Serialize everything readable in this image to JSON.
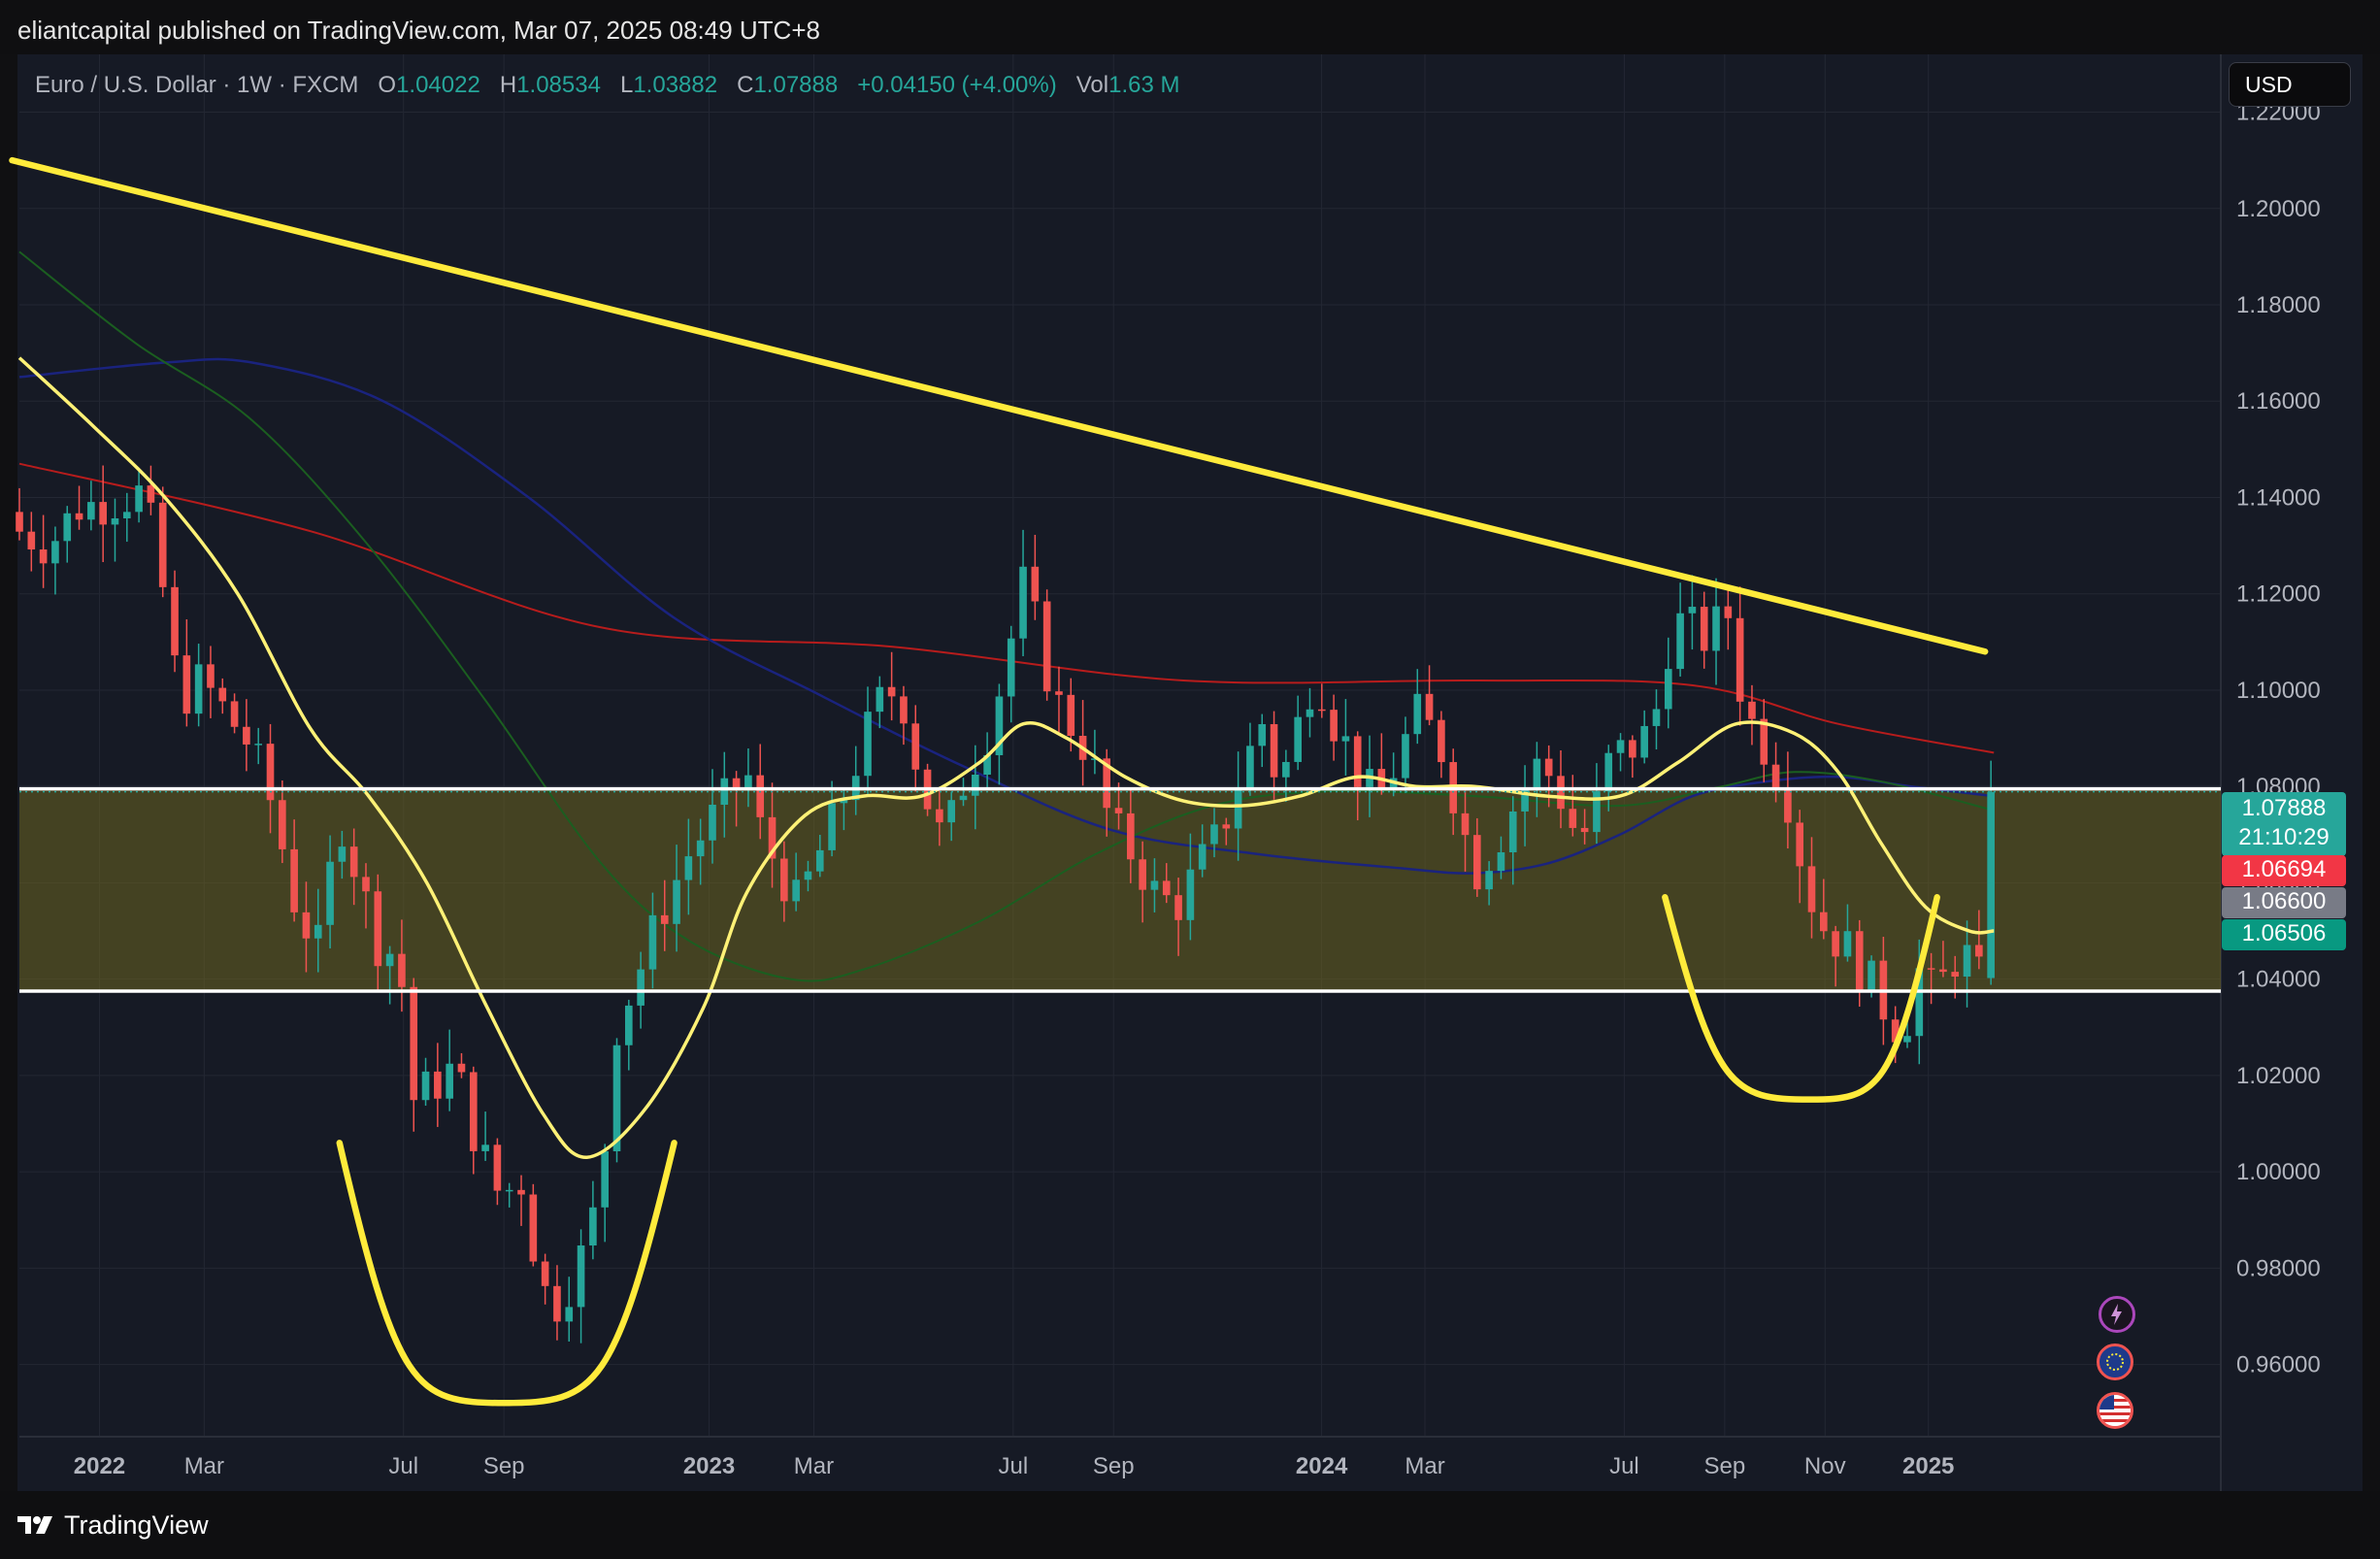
{
  "header": {
    "published_text": "eliantcapital published on TradingView.com, Mar 07, 2025 08:49 UTC+8"
  },
  "symbol": {
    "name": "Euro / U.S. Dollar · 1W · FXCM",
    "open_label": "O",
    "open": "1.04022",
    "high_label": "H",
    "high": "1.08534",
    "low_label": "L",
    "low": "1.03882",
    "close_label": "C",
    "close": "1.07888",
    "change": "+0.04150 (+4.00%)",
    "vol_label": "Vol",
    "vol": "1.63 M"
  },
  "currency_button": "USD",
  "badges": {
    "last_price": "1.07888",
    "countdown": "21:10:29",
    "red": "1.06694",
    "gray": "1.06600",
    "green": "1.06506"
  },
  "footer": {
    "brand": "TradingView"
  },
  "colors": {
    "background": "#161a25",
    "up": "#26a69a",
    "down": "#ef5350",
    "annotation_yellow": "#ffeb3b",
    "sma_red": "#b71c1c",
    "sma_blue": "#1a237e",
    "sma_green": "#1b5e20",
    "zone_fill": "#6b6520"
  },
  "icons": [
    "lightning-event-icon",
    "eu-flag-event-icon",
    "us-flag-event-icon"
  ],
  "chart_data": {
    "type": "candlestick",
    "timeframe": "1W",
    "ylim": [
      0.945,
      1.232
    ],
    "y_ticks": [
      "1.22000",
      "1.20000",
      "1.18000",
      "1.16000",
      "1.14000",
      "1.12000",
      "1.10000",
      "1.08000",
      "1.06000",
      "1.04000",
      "1.02000",
      "1.00000",
      "0.98000",
      "0.96000"
    ],
    "x_labels": [
      {
        "label": "2022",
        "bold": true,
        "t": 0.055
      },
      {
        "label": "Mar",
        "bold": false,
        "t": 0.127
      },
      {
        "label": "Jul",
        "bold": false,
        "t": 0.264
      },
      {
        "label": "Sep",
        "bold": false,
        "t": 0.333
      },
      {
        "label": "2023",
        "bold": true,
        "t": 0.474
      },
      {
        "label": "Mar",
        "bold": false,
        "t": 0.546
      },
      {
        "label": "Jul",
        "bold": false,
        "t": 0.683
      },
      {
        "label": "Sep",
        "bold": false,
        "t": 0.752
      },
      {
        "label": "2024",
        "bold": true,
        "t": 0.895
      },
      {
        "label": "Mar",
        "bold": false,
        "t": 0.966
      },
      {
        "label": "Jul",
        "bold": false,
        "t": 1.103
      },
      {
        "label": "Sep",
        "bold": false,
        "t": 1.172
      },
      {
        "label": "Nov",
        "bold": false,
        "t": 1.241
      },
      {
        "label": "2025",
        "bold": true,
        "t": 1.312
      }
    ],
    "close_anchors": [
      [
        0,
        1.133
      ],
      [
        0.02,
        1.13
      ],
      [
        0.04,
        1.138
      ],
      [
        0.06,
        1.139
      ],
      [
        0.085,
        1.141
      ],
      [
        0.095,
        1.128
      ],
      [
        0.11,
        1.098
      ],
      [
        0.125,
        1.102
      ],
      [
        0.14,
        1.096
      ],
      [
        0.16,
        1.088
      ],
      [
        0.175,
        1.075
      ],
      [
        0.19,
        1.055
      ],
      [
        0.205,
        1.046
      ],
      [
        0.22,
        1.074
      ],
      [
        0.235,
        1.059
      ],
      [
        0.25,
        1.044
      ],
      [
        0.26,
        1.048
      ],
      [
        0.27,
        1.015
      ],
      [
        0.285,
        1.018
      ],
      [
        0.3,
        1.022
      ],
      [
        0.31,
        1.01
      ],
      [
        0.33,
        0.995
      ],
      [
        0.345,
        0.998
      ],
      [
        0.355,
        0.982
      ],
      [
        0.365,
        0.971
      ],
      [
        0.375,
        0.975
      ],
      [
        0.39,
        0.985
      ],
      [
        0.4,
        0.998
      ],
      [
        0.41,
        1.03
      ],
      [
        0.425,
        1.041
      ],
      [
        0.44,
        1.053
      ],
      [
        0.46,
        1.066
      ],
      [
        0.48,
        1.075
      ],
      [
        0.5,
        1.083
      ],
      [
        0.51,
        1.07
      ],
      [
        0.525,
        1.061
      ],
      [
        0.535,
        1.055
      ],
      [
        0.545,
        1.063
      ],
      [
        0.56,
        1.073
      ],
      [
        0.575,
        1.085
      ],
      [
        0.59,
        1.097
      ],
      [
        0.605,
        1.101
      ],
      [
        0.615,
        1.087
      ],
      [
        0.625,
        1.076
      ],
      [
        0.635,
        1.068
      ],
      [
        0.65,
        1.082
      ],
      [
        0.665,
        1.091
      ],
      [
        0.675,
        1.102
      ],
      [
        0.69,
        1.122
      ],
      [
        0.7,
        1.112
      ],
      [
        0.71,
        1.099
      ],
      [
        0.72,
        1.094
      ],
      [
        0.735,
        1.087
      ],
      [
        0.75,
        1.072
      ],
      [
        0.765,
        1.066
      ],
      [
        0.78,
        1.058
      ],
      [
        0.795,
        1.055
      ],
      [
        0.81,
        1.063
      ],
      [
        0.825,
        1.07
      ],
      [
        0.84,
        1.083
      ],
      [
        0.855,
        1.094
      ],
      [
        0.865,
        1.08
      ],
      [
        0.875,
        1.088
      ],
      [
        0.885,
        1.101
      ],
      [
        0.895,
        1.101
      ],
      [
        0.905,
        1.092
      ],
      [
        0.915,
        1.087
      ],
      [
        0.925,
        1.079
      ],
      [
        0.935,
        1.078
      ],
      [
        0.945,
        1.084
      ],
      [
        0.96,
        1.095
      ],
      [
        0.975,
        1.09
      ],
      [
        0.99,
        1.074
      ],
      [
        1.0,
        1.062
      ],
      [
        1.015,
        1.068
      ],
      [
        1.03,
        1.078
      ],
      [
        1.045,
        1.085
      ],
      [
        1.055,
        1.081
      ],
      [
        1.07,
        1.07
      ],
      [
        1.08,
        1.071
      ],
      [
        1.09,
        1.084
      ],
      [
        1.1,
        1.087
      ],
      [
        1.115,
        1.089
      ],
      [
        1.125,
        1.096
      ],
      [
        1.135,
        1.112
      ],
      [
        1.145,
        1.115
      ],
      [
        1.155,
        1.11
      ],
      [
        1.165,
        1.113
      ],
      [
        1.175,
        1.116
      ],
      [
        1.185,
        1.096
      ],
      [
        1.195,
        1.091
      ],
      [
        1.205,
        1.085
      ],
      [
        1.215,
        1.078
      ],
      [
        1.225,
        1.064
      ],
      [
        1.235,
        1.053
      ],
      [
        1.245,
        1.049
      ],
      [
        1.255,
        1.047
      ],
      [
        1.265,
        1.042
      ],
      [
        1.275,
        1.038
      ],
      [
        1.285,
        1.032
      ],
      [
        1.295,
        1.029
      ],
      [
        1.305,
        1.042
      ],
      [
        1.315,
        1.037
      ],
      [
        1.325,
        1.041
      ],
      [
        1.335,
        1.047
      ],
      [
        1.345,
        1.04
      ],
      [
        1.352,
        1.04
      ],
      [
        1.355,
        1.07888
      ]
    ],
    "sma_red": [
      [
        0,
        1.147
      ],
      [
        0.2,
        1.133
      ],
      [
        0.4,
        1.113
      ],
      [
        0.6,
        1.109
      ],
      [
        0.8,
        1.102
      ],
      [
        1.0,
        1.102
      ],
      [
        1.15,
        1.101
      ],
      [
        1.25,
        1.093
      ],
      [
        1.357,
        1.087
      ]
    ],
    "sma_blue": [
      [
        0,
        1.165
      ],
      [
        0.1,
        1.168
      ],
      [
        0.16,
        1.168
      ],
      [
        0.25,
        1.16
      ],
      [
        0.35,
        1.14
      ],
      [
        0.45,
        1.115
      ],
      [
        0.55,
        1.099
      ],
      [
        0.65,
        1.084
      ],
      [
        0.75,
        1.071
      ],
      [
        0.85,
        1.066
      ],
      [
        0.95,
        1.063
      ],
      [
        1.0,
        1.062
      ],
      [
        1.05,
        1.064
      ],
      [
        1.1,
        1.07
      ],
      [
        1.15,
        1.078
      ],
      [
        1.2,
        1.081
      ],
      [
        1.25,
        1.082
      ],
      [
        1.3,
        1.08
      ],
      [
        1.357,
        1.078
      ]
    ],
    "sma_green": [
      [
        0,
        1.191
      ],
      [
        0.08,
        1.172
      ],
      [
        0.16,
        1.156
      ],
      [
        0.24,
        1.13
      ],
      [
        0.32,
        1.098
      ],
      [
        0.4,
        1.064
      ],
      [
        0.46,
        1.048
      ],
      [
        0.53,
        1.04
      ],
      [
        0.58,
        1.042
      ],
      [
        0.66,
        1.052
      ],
      [
        0.74,
        1.066
      ],
      [
        0.82,
        1.076
      ],
      [
        0.9,
        1.079
      ],
      [
        1.0,
        1.078
      ],
      [
        1.1,
        1.076
      ],
      [
        1.17,
        1.08
      ],
      [
        1.22,
        1.083
      ],
      [
        1.28,
        1.081
      ],
      [
        1.357,
        1.075
      ]
    ],
    "sma_yellow": [
      [
        0,
        1.169
      ],
      [
        0.05,
        1.155
      ],
      [
        0.1,
        1.14
      ],
      [
        0.15,
        1.12
      ],
      [
        0.2,
        1.092
      ],
      [
        0.24,
        1.078
      ],
      [
        0.28,
        1.06
      ],
      [
        0.32,
        1.035
      ],
      [
        0.36,
        1.012
      ],
      [
        0.39,
        1.003
      ],
      [
        0.43,
        1.013
      ],
      [
        0.47,
        1.034
      ],
      [
        0.5,
        1.058
      ],
      [
        0.54,
        1.074
      ],
      [
        0.58,
        1.078
      ],
      [
        0.62,
        1.078
      ],
      [
        0.66,
        1.085
      ],
      [
        0.69,
        1.093
      ],
      [
        0.72,
        1.09
      ],
      [
        0.76,
        1.082
      ],
      [
        0.8,
        1.077
      ],
      [
        0.84,
        1.076
      ],
      [
        0.88,
        1.078
      ],
      [
        0.92,
        1.082
      ],
      [
        0.96,
        1.08
      ],
      [
        1.0,
        1.08
      ],
      [
        1.05,
        1.078
      ],
      [
        1.1,
        1.078
      ],
      [
        1.14,
        1.085
      ],
      [
        1.18,
        1.093
      ],
      [
        1.22,
        1.091
      ],
      [
        1.25,
        1.083
      ],
      [
        1.28,
        1.068
      ],
      [
        1.31,
        1.055
      ],
      [
        1.34,
        1.05
      ],
      [
        1.357,
        1.05
      ]
    ],
    "trendline": [
      [
        -0.005,
        1.21
      ],
      [
        1.351,
        1.108
      ]
    ],
    "zone": {
      "top": 1.0795,
      "bottom": 1.0375
    },
    "dotted_level": 1.0789,
    "arcs": [
      {
        "from": [
          0.22,
          1.006
        ],
        "bottom": [
          0.333,
          0.952
        ],
        "to": [
          0.45,
          1.006
        ]
      },
      {
        "from": [
          1.131,
          1.057
        ],
        "bottom": [
          1.231,
          1.015
        ],
        "to": [
          1.318,
          1.057
        ]
      }
    ]
  }
}
